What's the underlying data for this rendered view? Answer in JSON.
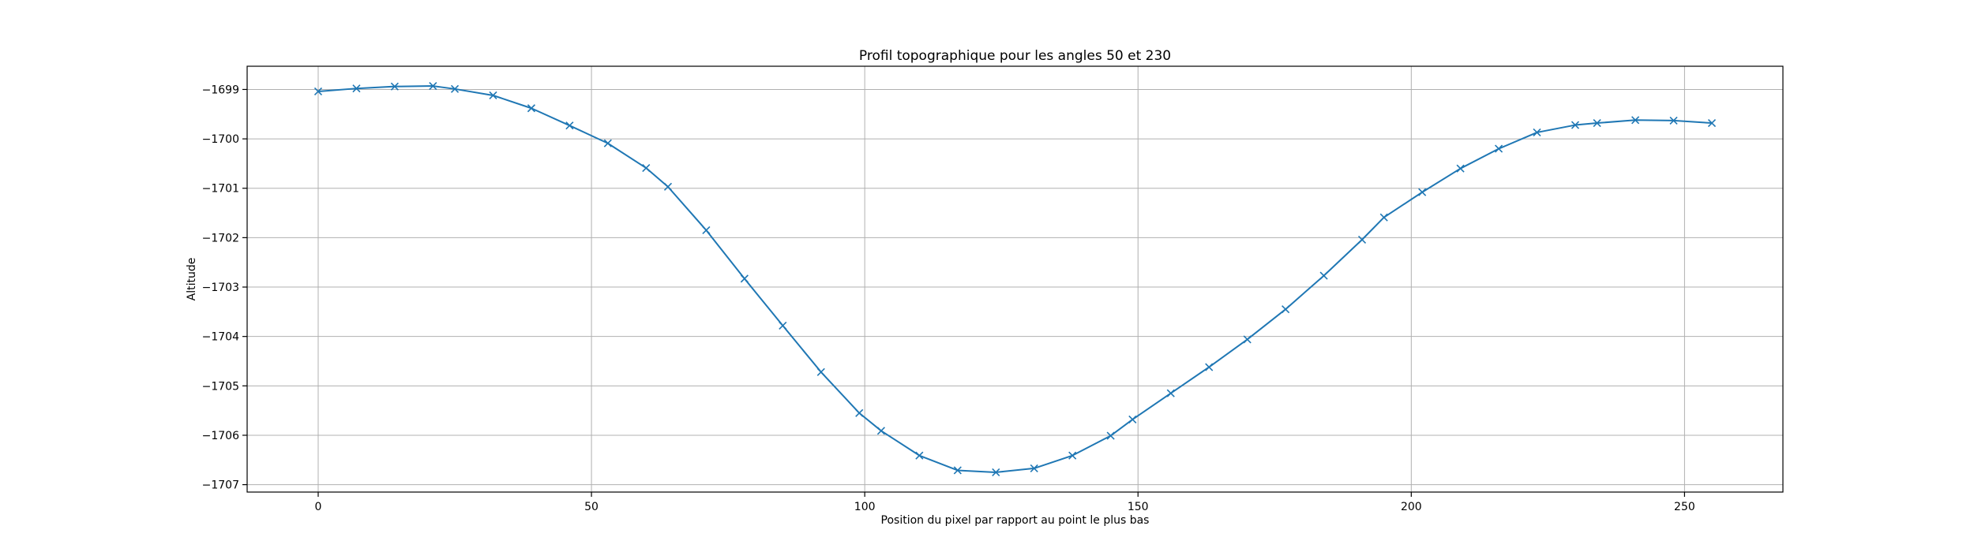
{
  "chart_data": {
    "type": "line",
    "title": "Profil topographique pour les angles 50 et 230",
    "xlabel": "Position du pixel par rapport au point le plus bas",
    "ylabel": "Altitude",
    "xlim": [
      -13,
      268
    ],
    "ylim": [
      -1707.15,
      -1698.53
    ],
    "xticks": [
      0,
      50,
      100,
      150,
      200,
      250
    ],
    "xtick_labels": [
      "0",
      "50",
      "100",
      "150",
      "200",
      "250"
    ],
    "yticks": [
      -1699,
      -1700,
      -1701,
      -1702,
      -1703,
      -1704,
      -1705,
      -1706,
      -1707
    ],
    "ytick_labels": [
      "−1699",
      "−1700",
      "−1701",
      "−1702",
      "−1703",
      "−1704",
      "−1705",
      "−1706",
      "−1707"
    ],
    "grid": true,
    "marker": "x",
    "series": [
      {
        "color": "#1f77b4",
        "x": [
          0,
          7,
          14,
          21,
          25,
          32,
          39,
          46,
          53,
          60,
          64,
          71,
          78,
          85,
          92,
          99,
          103,
          110,
          117,
          124,
          131,
          138,
          145,
          149,
          156,
          163,
          170,
          177,
          184,
          191,
          195,
          202,
          209,
          216,
          223,
          230,
          234,
          241,
          248,
          255
        ],
        "y": [
          -1699.04,
          -1698.98,
          -1698.94,
          -1698.93,
          -1698.99,
          -1699.12,
          -1699.38,
          -1699.73,
          -1700.09,
          -1700.59,
          -1700.97,
          -1701.85,
          -1702.83,
          -1703.78,
          -1704.72,
          -1705.55,
          -1705.91,
          -1706.41,
          -1706.71,
          -1706.75,
          -1706.67,
          -1706.41,
          -1706.01,
          -1705.68,
          -1705.15,
          -1704.62,
          -1704.06,
          -1703.45,
          -1702.77,
          -1702.04,
          -1701.59,
          -1701.08,
          -1700.6,
          -1700.2,
          -1699.87,
          -1699.72,
          -1699.68,
          -1699.62,
          -1699.63,
          -1699.68
        ]
      }
    ]
  }
}
